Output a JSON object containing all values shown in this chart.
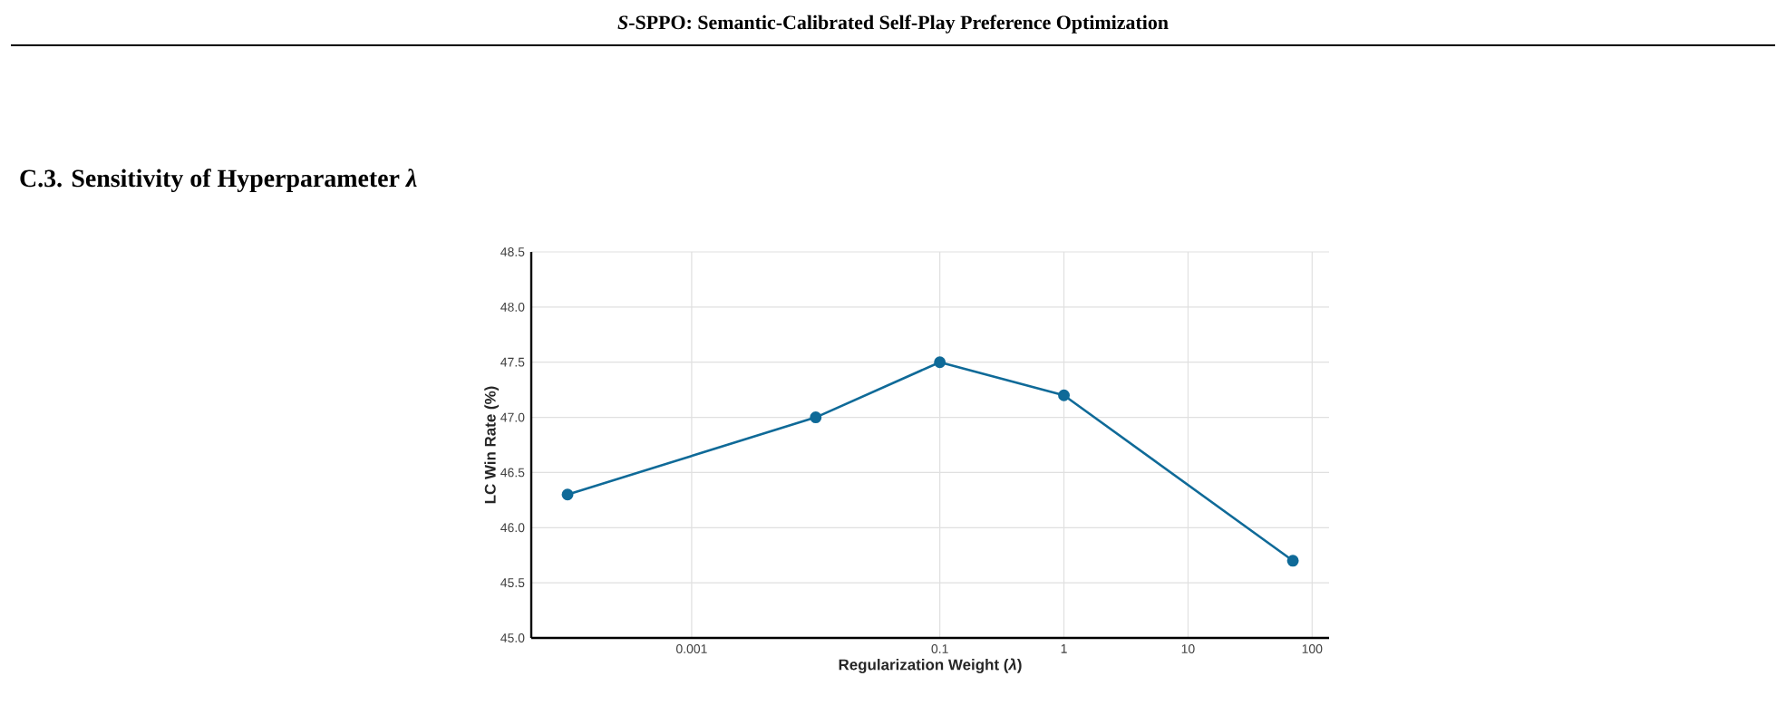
{
  "chart_data": {
    "type": "line",
    "title": "C.3. Sensitivity of Hyperparameter *λ*",
    "annotations": [
      "*S*-SPPO: Semantic-Calibrated Self-Play Preference Optimization"
    ],
    "xlabel": "Regularization Weight (*λ*)",
    "ylabel": "LC Win Rate (%)",
    "x": [
      0.0001,
      0.01,
      0.1,
      1,
      70
    ],
    "series": [
      {
        "color": "#0f6a98",
        "values": [
          46.3,
          47.0,
          47.5,
          47.2,
          45.7
        ]
      }
    ],
    "log": "x",
    "xlim": [
      5.1e-05,
      137
    ],
    "ylim": [
      45.0,
      48.5
    ],
    "xticks": [
      {
        "value": 0.001,
        "label": "0.001"
      },
      {
        "value": 0.1,
        "label": "0.1"
      },
      {
        "value": 1,
        "label": "1"
      },
      {
        "value": 10,
        "label": "10"
      },
      {
        "value": 100,
        "label": "100"
      }
    ],
    "yticks": [
      {
        "value": 45.0,
        "label": "45.0"
      },
      {
        "value": 45.5,
        "label": "45.5"
      },
      {
        "value": 46.0,
        "label": "46.0"
      },
      {
        "value": 46.5,
        "label": "46.5"
      },
      {
        "value": 47.0,
        "label": "47.0"
      },
      {
        "value": 47.5,
        "label": "47.5"
      },
      {
        "value": 48.0,
        "label": "48.0"
      },
      {
        "value": 48.5,
        "label": "48.5"
      }
    ],
    "grid": true,
    "marker": "circle",
    "line_style": "solid"
  }
}
